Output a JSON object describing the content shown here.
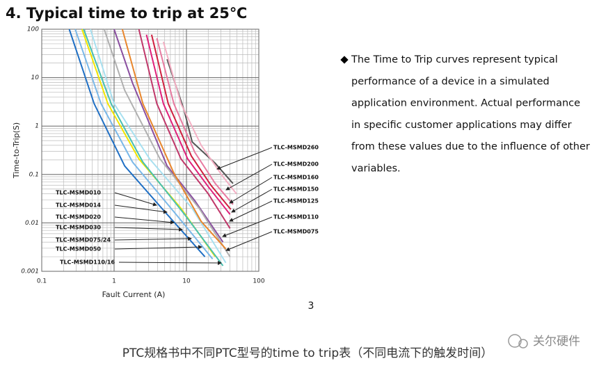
{
  "header": {
    "title": "4. Typical time to trip at 25℃"
  },
  "chart_data": {
    "type": "line",
    "xlabel": "Fault Current (A)",
    "ylabel": "Time-to-Trip(S)",
    "xlog": true,
    "ylog": true,
    "xlim": [
      0.1,
      100
    ],
    "ylim": [
      0.001,
      100
    ],
    "xticks": [
      0.1,
      1,
      10,
      100
    ],
    "yticks": [
      0.001,
      0.01,
      0.1,
      1,
      10,
      100
    ],
    "grid": true,
    "minor_grid": true,
    "series": [
      {
        "name": "TLC-MSMD010",
        "color": "#1f6fc4",
        "x": [
          0.24,
          0.53,
          1.4,
          5.4,
          18
        ],
        "values": [
          100,
          2.9,
          0.15,
          0.015,
          0.002
        ]
      },
      {
        "name": "TLC-MSMD014",
        "color": "#7ab8e8",
        "x": [
          0.29,
          0.66,
          1.8,
          6.7,
          23
        ],
        "values": [
          100,
          2.9,
          0.18,
          0.017,
          0.0018
        ]
      },
      {
        "name": "TLC-MSMD020",
        "color": "#f2e600",
        "x": [
          0.36,
          0.82,
          2.2,
          8.4,
          25
        ],
        "values": [
          100,
          2.9,
          0.21,
          0.02,
          0.002
        ]
      },
      {
        "name": "TLC-MSMD030",
        "color": "#a8e0f0",
        "x": [
          0.47,
          1.0,
          3.1,
          12,
          35
        ],
        "values": [
          100,
          2.9,
          0.21,
          0.02,
          0.0015
        ]
      },
      {
        "name": "TLC-MSMD075/24",
        "color": "#8a4fa0",
        "x": [
          1.0,
          1.8,
          5.4,
          13,
          32
        ],
        "values": [
          100,
          7.7,
          0.15,
          0.029,
          0.004
        ]
      },
      {
        "name": "TLC-MSMD050",
        "color": "#b0b0b0",
        "x": [
          0.73,
          1.4,
          4.3,
          15,
          40
        ],
        "values": [
          100,
          5.5,
          0.21,
          0.02,
          0.002
        ]
      },
      {
        "name": "TLC-MSMD110/16",
        "color": "#48c0b0",
        "x": [
          0.38,
          0.91,
          2.5,
          9.4,
          32
        ],
        "values": [
          100,
          2.9,
          0.18,
          0.015,
          0.0013
        ]
      },
      {
        "name": "TLC-MSMD260",
        "color": "#555555",
        "x": [
          5.4,
          9.3,
          12,
          25,
          44
        ],
        "values": [
          24,
          2.1,
          0.47,
          0.17,
          0.065
        ]
      },
      {
        "name": "TLC-MSMD200",
        "color": "#f4b0c4",
        "x": [
          4.8,
          8.4,
          16,
          32,
          49
        ],
        "values": [
          55,
          2.9,
          0.4,
          0.09,
          0.04
        ]
      },
      {
        "name": "TLC-MSMD160",
        "color": "#e87aa0",
        "x": [
          3.9,
          6.7,
          13,
          25,
          44
        ],
        "values": [
          65,
          2.9,
          0.29,
          0.065,
          0.024
        ]
      },
      {
        "name": "TLC-MSMD150",
        "color": "#d02040",
        "x": [
          3.3,
          5.6,
          11.7,
          22,
          41
        ],
        "values": [
          77,
          2.9,
          0.24,
          0.059,
          0.019
        ]
      },
      {
        "name": "TLC-MSMD125",
        "color": "#e0207a",
        "x": [
          2.8,
          4.8,
          10.4,
          20,
          40
        ],
        "values": [
          77,
          2.9,
          0.21,
          0.056,
          0.015
        ]
      },
      {
        "name": "TLC-MSMD110",
        "color": "#c0386a",
        "x": [
          2.2,
          3.9,
          8.4,
          20,
          40
        ],
        "values": [
          100,
          2.9,
          0.21,
          0.04,
          0.0077
        ]
      },
      {
        "name": "TLC-MSMD075",
        "color": "#e8862c",
        "x": [
          1.3,
          2.5,
          6.7,
          16,
          35
        ],
        "values": [
          100,
          2.9,
          0.107,
          0.0107,
          0.0029
        ]
      }
    ]
  },
  "note": {
    "lines": [
      "The Time to Trip curves represent typical",
      "performance of a device in a simulated",
      "application environment. Actual performance",
      "in specific customer applications may differ",
      "from these values due to the influence of other",
      "variables."
    ]
  },
  "page_number": "3",
  "caption": "PTC规格书中不同PTC型号的time to trip表（不同电流下的触发时间）",
  "watermark": "关尔硬件"
}
